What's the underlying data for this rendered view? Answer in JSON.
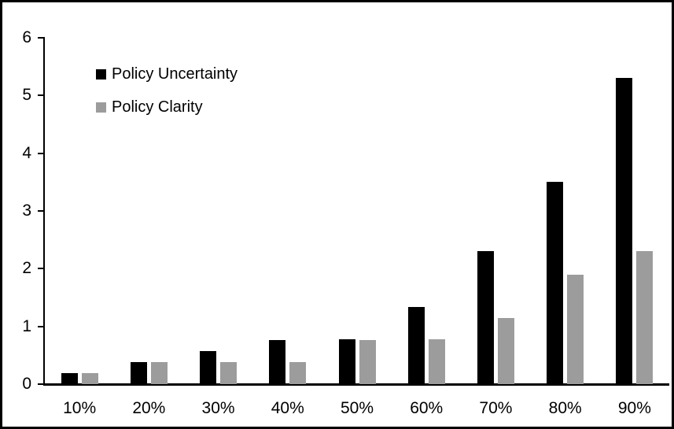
{
  "chart_data": {
    "type": "bar",
    "title": "",
    "xlabel": "",
    "ylabel": "",
    "categories": [
      "10%",
      "20%",
      "30%",
      "40%",
      "50%",
      "60%",
      "70%",
      "80%",
      "90%"
    ],
    "series": [
      {
        "name": "Policy Uncertainty",
        "color": "#000000",
        "values": [
          0.19,
          0.38,
          0.57,
          0.76,
          0.78,
          1.33,
          2.3,
          3.5,
          5.3
        ]
      },
      {
        "name": "Policy Clarity",
        "color": "#9c9c9c",
        "values": [
          0.19,
          0.38,
          0.38,
          0.38,
          0.77,
          0.78,
          1.15,
          1.9,
          2.3
        ]
      }
    ],
    "ylim": [
      0,
      6
    ],
    "y_ticks": [
      0,
      1,
      2,
      3,
      4,
      5,
      6
    ],
    "grid": false,
    "legend_position": "top-left"
  },
  "frame": {
    "background": "#ffffff",
    "border_color": "#000000"
  }
}
